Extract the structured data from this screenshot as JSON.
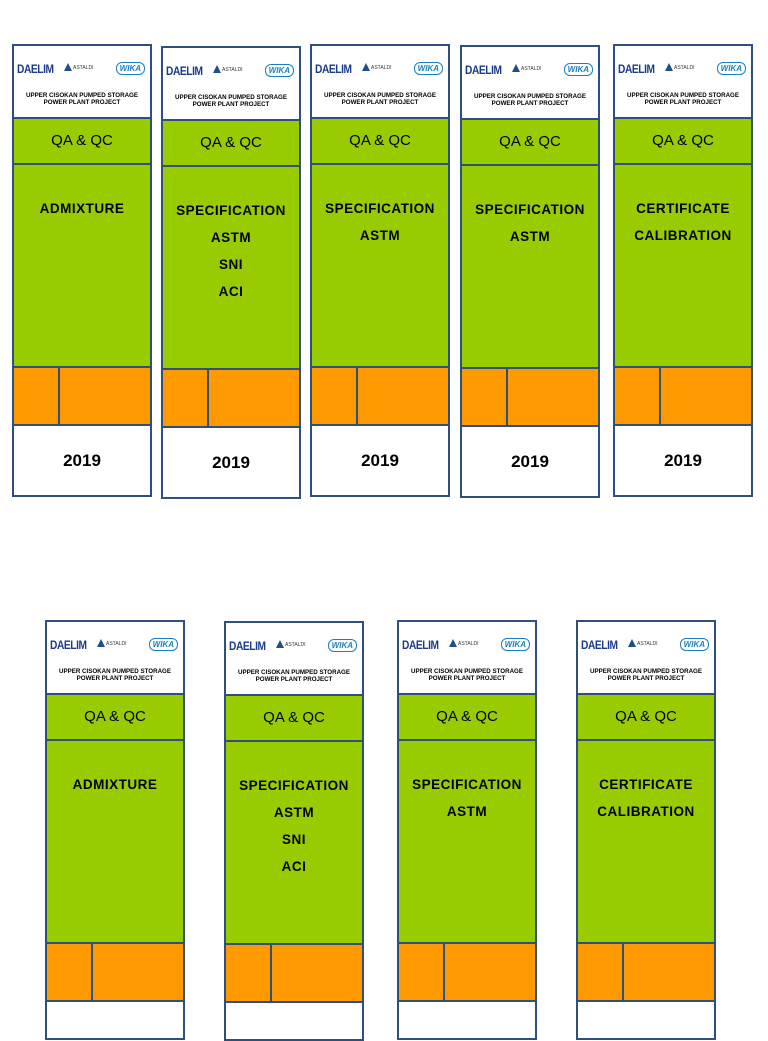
{
  "labels": [
    {
      "logos": [
        "DAELIM",
        "ASTALDI",
        "WIKA"
      ],
      "project": [
        "UPPER CISOKAN PUMPED STORAGE",
        "POWER PLANT PROJECT"
      ],
      "section": "QA & QC",
      "subject": [
        "ADMIXTURE"
      ],
      "year": "2019"
    },
    {
      "logos": [
        "DAELIM",
        "ASTALDI",
        "WIKA"
      ],
      "project": [
        "UPPER CISOKAN PUMPED STORAGE",
        "POWER PLANT PROJECT"
      ],
      "section": "QA & QC",
      "subject": [
        "SPECIFICATION",
        "ASTM",
        "SNI",
        "ACI"
      ],
      "year": "2019"
    },
    {
      "logos": [
        "DAELIM",
        "ASTALDI",
        "WIKA"
      ],
      "project": [
        "UPPER CISOKAN PUMPED STORAGE",
        "POWER PLANT PROJECT"
      ],
      "section": "QA & QC",
      "subject": [
        "SPECIFICATION",
        "ASTM"
      ],
      "year": "2019"
    },
    {
      "logos": [
        "DAELIM",
        "ASTALDI",
        "WIKA"
      ],
      "project": [
        "UPPER CISOKAN PUMPED STORAGE",
        "POWER PLANT PROJECT"
      ],
      "section": "QA & QC",
      "subject": [
        "SPECIFICATION",
        "ASTM"
      ],
      "year": "2019"
    },
    {
      "logos": [
        "DAELIM",
        "ASTALDI",
        "WIKA"
      ],
      "project": [
        "UPPER CISOKAN PUMPED STORAGE",
        "POWER PLANT PROJECT"
      ],
      "section": "QA & QC",
      "subject": [
        "CERTIFICATE",
        "CALIBRATION"
      ],
      "year": "2019"
    },
    {
      "logos": [
        "DAELIM",
        "ASTALDI",
        "WIKA"
      ],
      "project": [
        "UPPER CISOKAN PUMPED STORAGE",
        "POWER PLANT PROJECT"
      ],
      "section": "QA & QC",
      "subject": [
        "ADMIXTURE"
      ]
    },
    {
      "logos": [
        "DAELIM",
        "ASTALDI",
        "WIKA"
      ],
      "project": [
        "UPPER CISOKAN PUMPED STORAGE",
        "POWER PLANT PROJECT"
      ],
      "section": "QA & QC",
      "subject": [
        "SPECIFICATION",
        "ASTM",
        "SNI",
        "ACI"
      ]
    },
    {
      "logos": [
        "DAELIM",
        "ASTALDI",
        "WIKA"
      ],
      "project": [
        "UPPER CISOKAN PUMPED STORAGE",
        "POWER PLANT PROJECT"
      ],
      "section": "QA & QC",
      "subject": [
        "SPECIFICATION",
        "ASTM"
      ]
    },
    {
      "logos": [
        "DAELIM",
        "ASTALDI",
        "WIKA"
      ],
      "project": [
        "UPPER CISOKAN PUMPED STORAGE",
        "POWER PLANT PROJECT"
      ],
      "section": "QA & QC",
      "subject": [
        "CERTIFICATE",
        "CALIBRATION"
      ]
    }
  ]
}
